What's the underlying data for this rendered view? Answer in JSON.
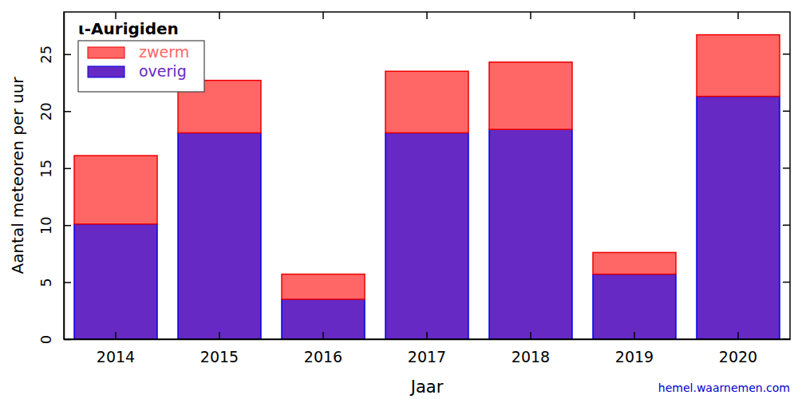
{
  "chart_data": {
    "type": "bar",
    "title": "ι-Aurigiden",
    "x_label": "Jaar",
    "y_label": "Aantal meteoren per uur",
    "annotations": [
      "hemel.waarnemen.com"
    ],
    "categories": [
      "2014",
      "2015",
      "2016",
      "2017",
      "2018",
      "2019",
      "2020"
    ],
    "series": [
      {
        "name": "overig",
        "color": "#6629c4",
        "values": [
          10.1,
          18.1,
          3.5,
          18.1,
          18.4,
          5.7,
          21.3
        ]
      },
      {
        "name": "zwerm",
        "color": "#ff6666",
        "values": [
          6.0,
          4.6,
          2.2,
          5.4,
          5.9,
          1.9,
          5.4
        ]
      }
    ],
    "stacked": true,
    "legend": "upper left",
    "ylim": [
      0,
      28.7
    ],
    "yticks": [
      0,
      5,
      10,
      15,
      20,
      25
    ],
    "grid": false
  }
}
